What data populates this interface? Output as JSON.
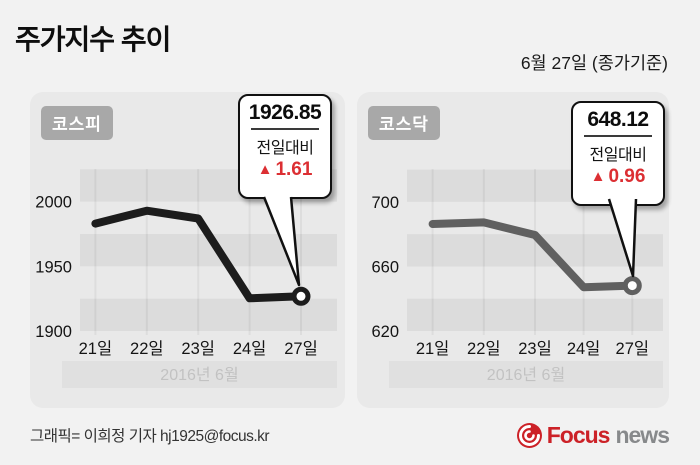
{
  "header": {
    "title": "주가지수 추이",
    "date_label": "6월 27일 (종가기준)"
  },
  "footer": {
    "credit": "그래픽= 이희정 기자 hj1925@focus.kr",
    "logo_focus": "Focus",
    "logo_news": "news"
  },
  "chart_data": [
    {
      "type": "line",
      "title": "코스피",
      "categories": [
        "21일",
        "22일",
        "23일",
        "24일",
        "27일"
      ],
      "values": [
        1983,
        1993,
        1987,
        1925.24,
        1926.85
      ],
      "yticks": [
        2000,
        1950,
        1900
      ],
      "ylim": [
        2026,
        1900
      ],
      "x_axis_note": "2016년 6월",
      "line_color": "#1c1c1c",
      "grid": "horizontal-bands",
      "legend": "none",
      "callout": {
        "value": "1926.85",
        "compare_label": "전일대비",
        "direction_symbol": "▲",
        "change": "1.61",
        "change_color": "#dc2f33"
      }
    },
    {
      "type": "line",
      "title": "코스닥",
      "categories": [
        "21일",
        "22일",
        "23일",
        "24일",
        "27일"
      ],
      "values": [
        686.3,
        687.3,
        679.5,
        647.16,
        648.12
      ],
      "yticks": [
        700,
        660,
        620
      ],
      "ylim": [
        721,
        620
      ],
      "x_axis_note": "2016년 6월",
      "line_color": "#606060",
      "grid": "horizontal-bands",
      "legend": "none",
      "callout": {
        "value": "648.12",
        "compare_label": "전일대비",
        "direction_symbol": "▲",
        "change": "0.96",
        "change_color": "#dc2f33"
      }
    }
  ]
}
